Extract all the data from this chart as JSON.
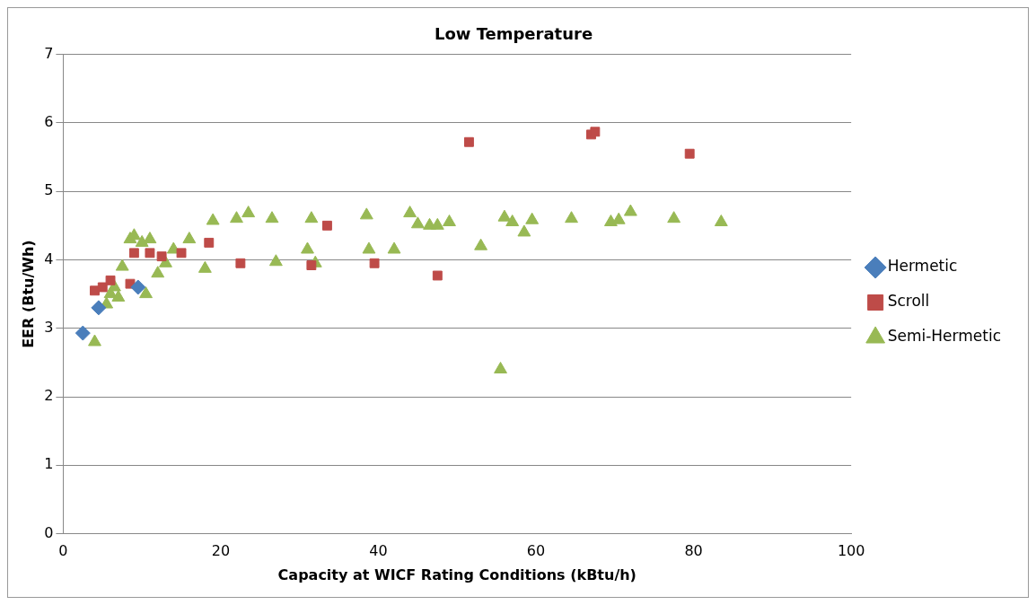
{
  "chart_data": {
    "type": "scatter",
    "title": "Low Temperature",
    "xlabel": "Capacity at WICF Rating Conditions (kBtu/h)",
    "ylabel": "EER (Btu/Wh)",
    "xlim": [
      0,
      100
    ],
    "xticks": [
      0,
      20,
      40,
      60,
      80,
      100
    ],
    "ylim": [
      0,
      7
    ],
    "yticks": [
      0,
      1,
      2,
      3,
      4,
      5,
      6,
      7
    ],
    "grid": "y",
    "legend": "right",
    "series": [
      {
        "name": "Hermetic",
        "color": "#4a7ebb",
        "marker": "diamond",
        "x": [
          2.5,
          4.5,
          9.5
        ],
        "values": [
          2.93,
          3.3,
          3.6
        ]
      },
      {
        "name": "Scroll",
        "color": "#be4b48",
        "marker": "square",
        "x": [
          4,
          5,
          6,
          8.5,
          9,
          11,
          12.5,
          15,
          18.5,
          22.5,
          31.5,
          33.5,
          39.5,
          47.5,
          51.5,
          67,
          67.5,
          79.5
        ],
        "values": [
          3.55,
          3.6,
          3.7,
          3.65,
          4.1,
          4.1,
          4.05,
          4.1,
          4.25,
          3.95,
          3.92,
          4.5,
          3.95,
          3.77,
          5.72,
          5.83,
          5.87,
          5.55
        ]
      },
      {
        "name": "Semi-Hermetic",
        "color": "#98b954",
        "marker": "triangle",
        "x": [
          4,
          5.5,
          6,
          6.5,
          7,
          7.5,
          8.5,
          9,
          10,
          10.5,
          11,
          12,
          13,
          14,
          16,
          18,
          19,
          22,
          23.5,
          26.5,
          27,
          31,
          31.5,
          32,
          38.5,
          38.8,
          42,
          44,
          45,
          46.5,
          47.5,
          49,
          53,
          55.5,
          56,
          57,
          58.5,
          59.5,
          64.5,
          69.5,
          70.5,
          72,
          77.5,
          83.5
        ],
        "values": [
          2.8,
          3.35,
          3.5,
          3.6,
          3.45,
          3.9,
          4.3,
          4.35,
          4.25,
          3.5,
          4.3,
          3.8,
          3.95,
          4.15,
          4.3,
          3.87,
          4.57,
          4.6,
          4.68,
          4.6,
          3.97,
          4.15,
          4.6,
          3.95,
          4.65,
          4.15,
          4.15,
          4.68,
          4.52,
          4.5,
          4.5,
          4.55,
          4.2,
          2.4,
          4.62,
          4.55,
          4.4,
          4.58,
          4.6,
          4.55,
          4.58,
          4.7,
          4.6,
          4.55
        ]
      }
    ]
  }
}
